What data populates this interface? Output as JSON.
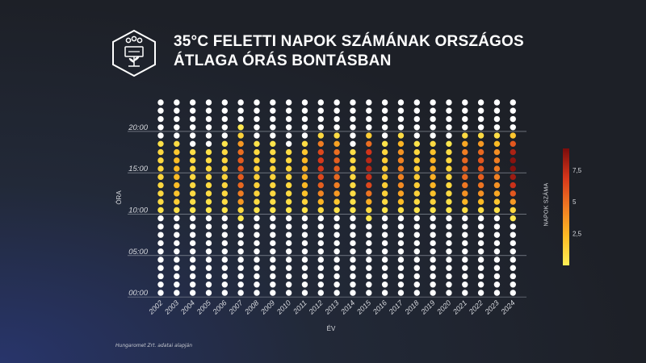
{
  "header": {
    "title_line1": "35°C FELETTI NAPOK SZÁMÁNAK ORSZÁGOS",
    "title_line2": "ÁTLAGA ÓRÁS BONTÁSBAN",
    "logo_icon": "weather-station-icon"
  },
  "source": "Hungaromet Zrt. adatai alapján",
  "colors": {
    "background": "#1d2027",
    "empty_dot": "#ffffff",
    "scale": [
      "#ffee55",
      "#fdbb24",
      "#ef7a22",
      "#d6361b",
      "#7a0c0c"
    ]
  },
  "chart_data": {
    "type": "heatmap",
    "xlabel": "ÉV",
    "ylabel": "ÓRA",
    "years": [
      "2002",
      "2003",
      "2004",
      "2005",
      "2006",
      "2007",
      "2008",
      "2009",
      "2010",
      "2011",
      "2012",
      "2013",
      "2014",
      "2015",
      "2016",
      "2017",
      "2018",
      "2019",
      "2020",
      "2021",
      "2022",
      "2023",
      "2024"
    ],
    "hours": [
      0,
      1,
      2,
      3,
      4,
      5,
      6,
      7,
      8,
      9,
      10,
      11,
      12,
      13,
      14,
      15,
      16,
      17,
      18,
      19,
      20,
      21,
      22,
      23
    ],
    "y_ticks": [
      {
        "hour": 0,
        "label": "00:00"
      },
      {
        "hour": 5,
        "label": "05:00"
      },
      {
        "hour": 10,
        "label": "10:00"
      },
      {
        "hour": 15,
        "label": "15:00"
      },
      {
        "hour": 20,
        "label": "20:00"
      }
    ],
    "grid": true,
    "legend": {
      "title": "NAPOK SZÁMA",
      "position": "right",
      "min": 0,
      "max": 9.2,
      "ticks": [
        {
          "value": 2.5,
          "label": "2,5"
        },
        {
          "value": 5,
          "label": "5"
        },
        {
          "value": 7.5,
          "label": "7,5"
        }
      ]
    },
    "values": {
      "2002": {
        "10": 0.4,
        "11": 0.8,
        "12": 1.0,
        "13": 1.0,
        "14": 1.1,
        "15": 1.1,
        "16": 1.0,
        "17": 1.0,
        "18": 0.6
      },
      "2003": {
        "10": 0.6,
        "11": 1.5,
        "12": 1.9,
        "13": 2.2,
        "14": 2.3,
        "15": 2.3,
        "16": 2.2,
        "17": 1.8,
        "18": 0.8
      },
      "2004": {
        "10": 0.3,
        "11": 0.7,
        "12": 0.9,
        "13": 1.0,
        "14": 1.0,
        "15": 1.0,
        "16": 0.9,
        "17": 0.7
      },
      "2005": {
        "10": 0.3,
        "11": 0.6,
        "12": 0.8,
        "13": 0.9,
        "14": 0.9,
        "15": 0.9,
        "16": 0.8,
        "17": 0.6
      },
      "2006": {
        "10": 0.4,
        "11": 0.8,
        "12": 1.0,
        "13": 1.1,
        "14": 1.2,
        "15": 1.2,
        "16": 1.1,
        "17": 0.9,
        "18": 0.4
      },
      "2007": {
        "9": 0.3,
        "10": 0.9,
        "11": 3.5,
        "12": 4.5,
        "13": 5.2,
        "14": 5.6,
        "15": 5.8,
        "16": 5.6,
        "17": 5.0,
        "18": 3.5,
        "19": 1.2,
        "20": 0.3
      },
      "2008": {
        "10": 0.4,
        "11": 0.9,
        "12": 1.2,
        "13": 1.3,
        "14": 1.4,
        "15": 1.4,
        "16": 1.3,
        "17": 1.0,
        "18": 0.5
      },
      "2009": {
        "10": 0.3,
        "11": 0.7,
        "12": 1.0,
        "13": 1.1,
        "14": 1.2,
        "15": 1.2,
        "16": 1.1,
        "17": 0.8,
        "18": 0.4
      },
      "2010": {
        "10": 0.3,
        "11": 0.7,
        "12": 0.9,
        "13": 1.0,
        "14": 1.1,
        "15": 1.1,
        "16": 1.0,
        "17": 0.8
      },
      "2011": {
        "10": 0.5,
        "11": 1.2,
        "12": 2.0,
        "13": 2.4,
        "14": 2.6,
        "15": 2.6,
        "16": 2.4,
        "17": 1.8,
        "18": 0.8
      },
      "2012": {
        "10": 0.8,
        "11": 2.5,
        "12": 4.2,
        "13": 5.5,
        "14": 6.3,
        "15": 6.8,
        "16": 6.8,
        "17": 6.3,
        "18": 4.5,
        "19": 1.0
      },
      "2013": {
        "10": 0.5,
        "11": 1.8,
        "12": 3.5,
        "13": 4.5,
        "14": 5.2,
        "15": 5.6,
        "16": 5.5,
        "17": 5.0,
        "18": 3.2,
        "19": 0.8
      },
      "2014": {
        "10": 0.3,
        "11": 0.6,
        "12": 0.8,
        "13": 0.9,
        "14": 1.0,
        "15": 1.0,
        "16": 0.9,
        "17": 0.7
      },
      "2015": {
        "9": 0.3,
        "10": 0.9,
        "11": 2.8,
        "12": 4.8,
        "13": 6.3,
        "14": 7.2,
        "15": 7.8,
        "16": 7.6,
        "17": 7.0,
        "18": 5.0,
        "19": 1.5
      },
      "2016": {
        "10": 0.4,
        "11": 0.9,
        "12": 1.3,
        "13": 1.5,
        "14": 1.6,
        "15": 1.6,
        "16": 1.5,
        "17": 1.1,
        "18": 0.5
      },
      "2017": {
        "10": 0.6,
        "11": 2.2,
        "12": 3.2,
        "13": 4.0,
        "14": 4.3,
        "15": 4.5,
        "16": 4.3,
        "17": 3.7,
        "18": 2.5,
        "19": 0.8
      },
      "2018": {
        "10": 0.4,
        "11": 0.9,
        "12": 1.3,
        "13": 1.5,
        "14": 1.6,
        "15": 1.6,
        "16": 1.5,
        "17": 1.1,
        "18": 0.5
      },
      "2019": {
        "10": 0.4,
        "11": 1.2,
        "12": 2.0,
        "13": 2.5,
        "14": 2.7,
        "15": 2.8,
        "16": 2.6,
        "17": 2.0,
        "18": 0.9
      },
      "2020": {
        "10": 0.3,
        "11": 0.6,
        "12": 0.9,
        "13": 1.0,
        "14": 1.1,
        "15": 1.1,
        "16": 1.0,
        "17": 0.8,
        "18": 0.3
      },
      "2021": {
        "10": 0.7,
        "11": 2.5,
        "12": 3.8,
        "13": 4.7,
        "14": 5.2,
        "15": 5.4,
        "16": 5.2,
        "17": 4.5,
        "18": 3.0,
        "19": 0.9
      },
      "2022": {
        "10": 0.7,
        "11": 2.3,
        "12": 3.8,
        "13": 4.8,
        "14": 5.5,
        "15": 5.8,
        "16": 5.8,
        "17": 5.2,
        "18": 3.5,
        "19": 0.9
      },
      "2023": {
        "10": 0.6,
        "11": 1.8,
        "12": 3.0,
        "13": 3.8,
        "14": 4.4,
        "15": 4.6,
        "16": 4.5,
        "17": 3.9,
        "18": 2.3,
        "19": 0.7
      },
      "2024": {
        "9": 0.3,
        "10": 1.0,
        "11": 3.5,
        "12": 5.8,
        "13": 7.2,
        "14": 8.3,
        "15": 8.9,
        "16": 8.8,
        "17": 8.0,
        "18": 5.8,
        "19": 1.8
      }
    }
  }
}
